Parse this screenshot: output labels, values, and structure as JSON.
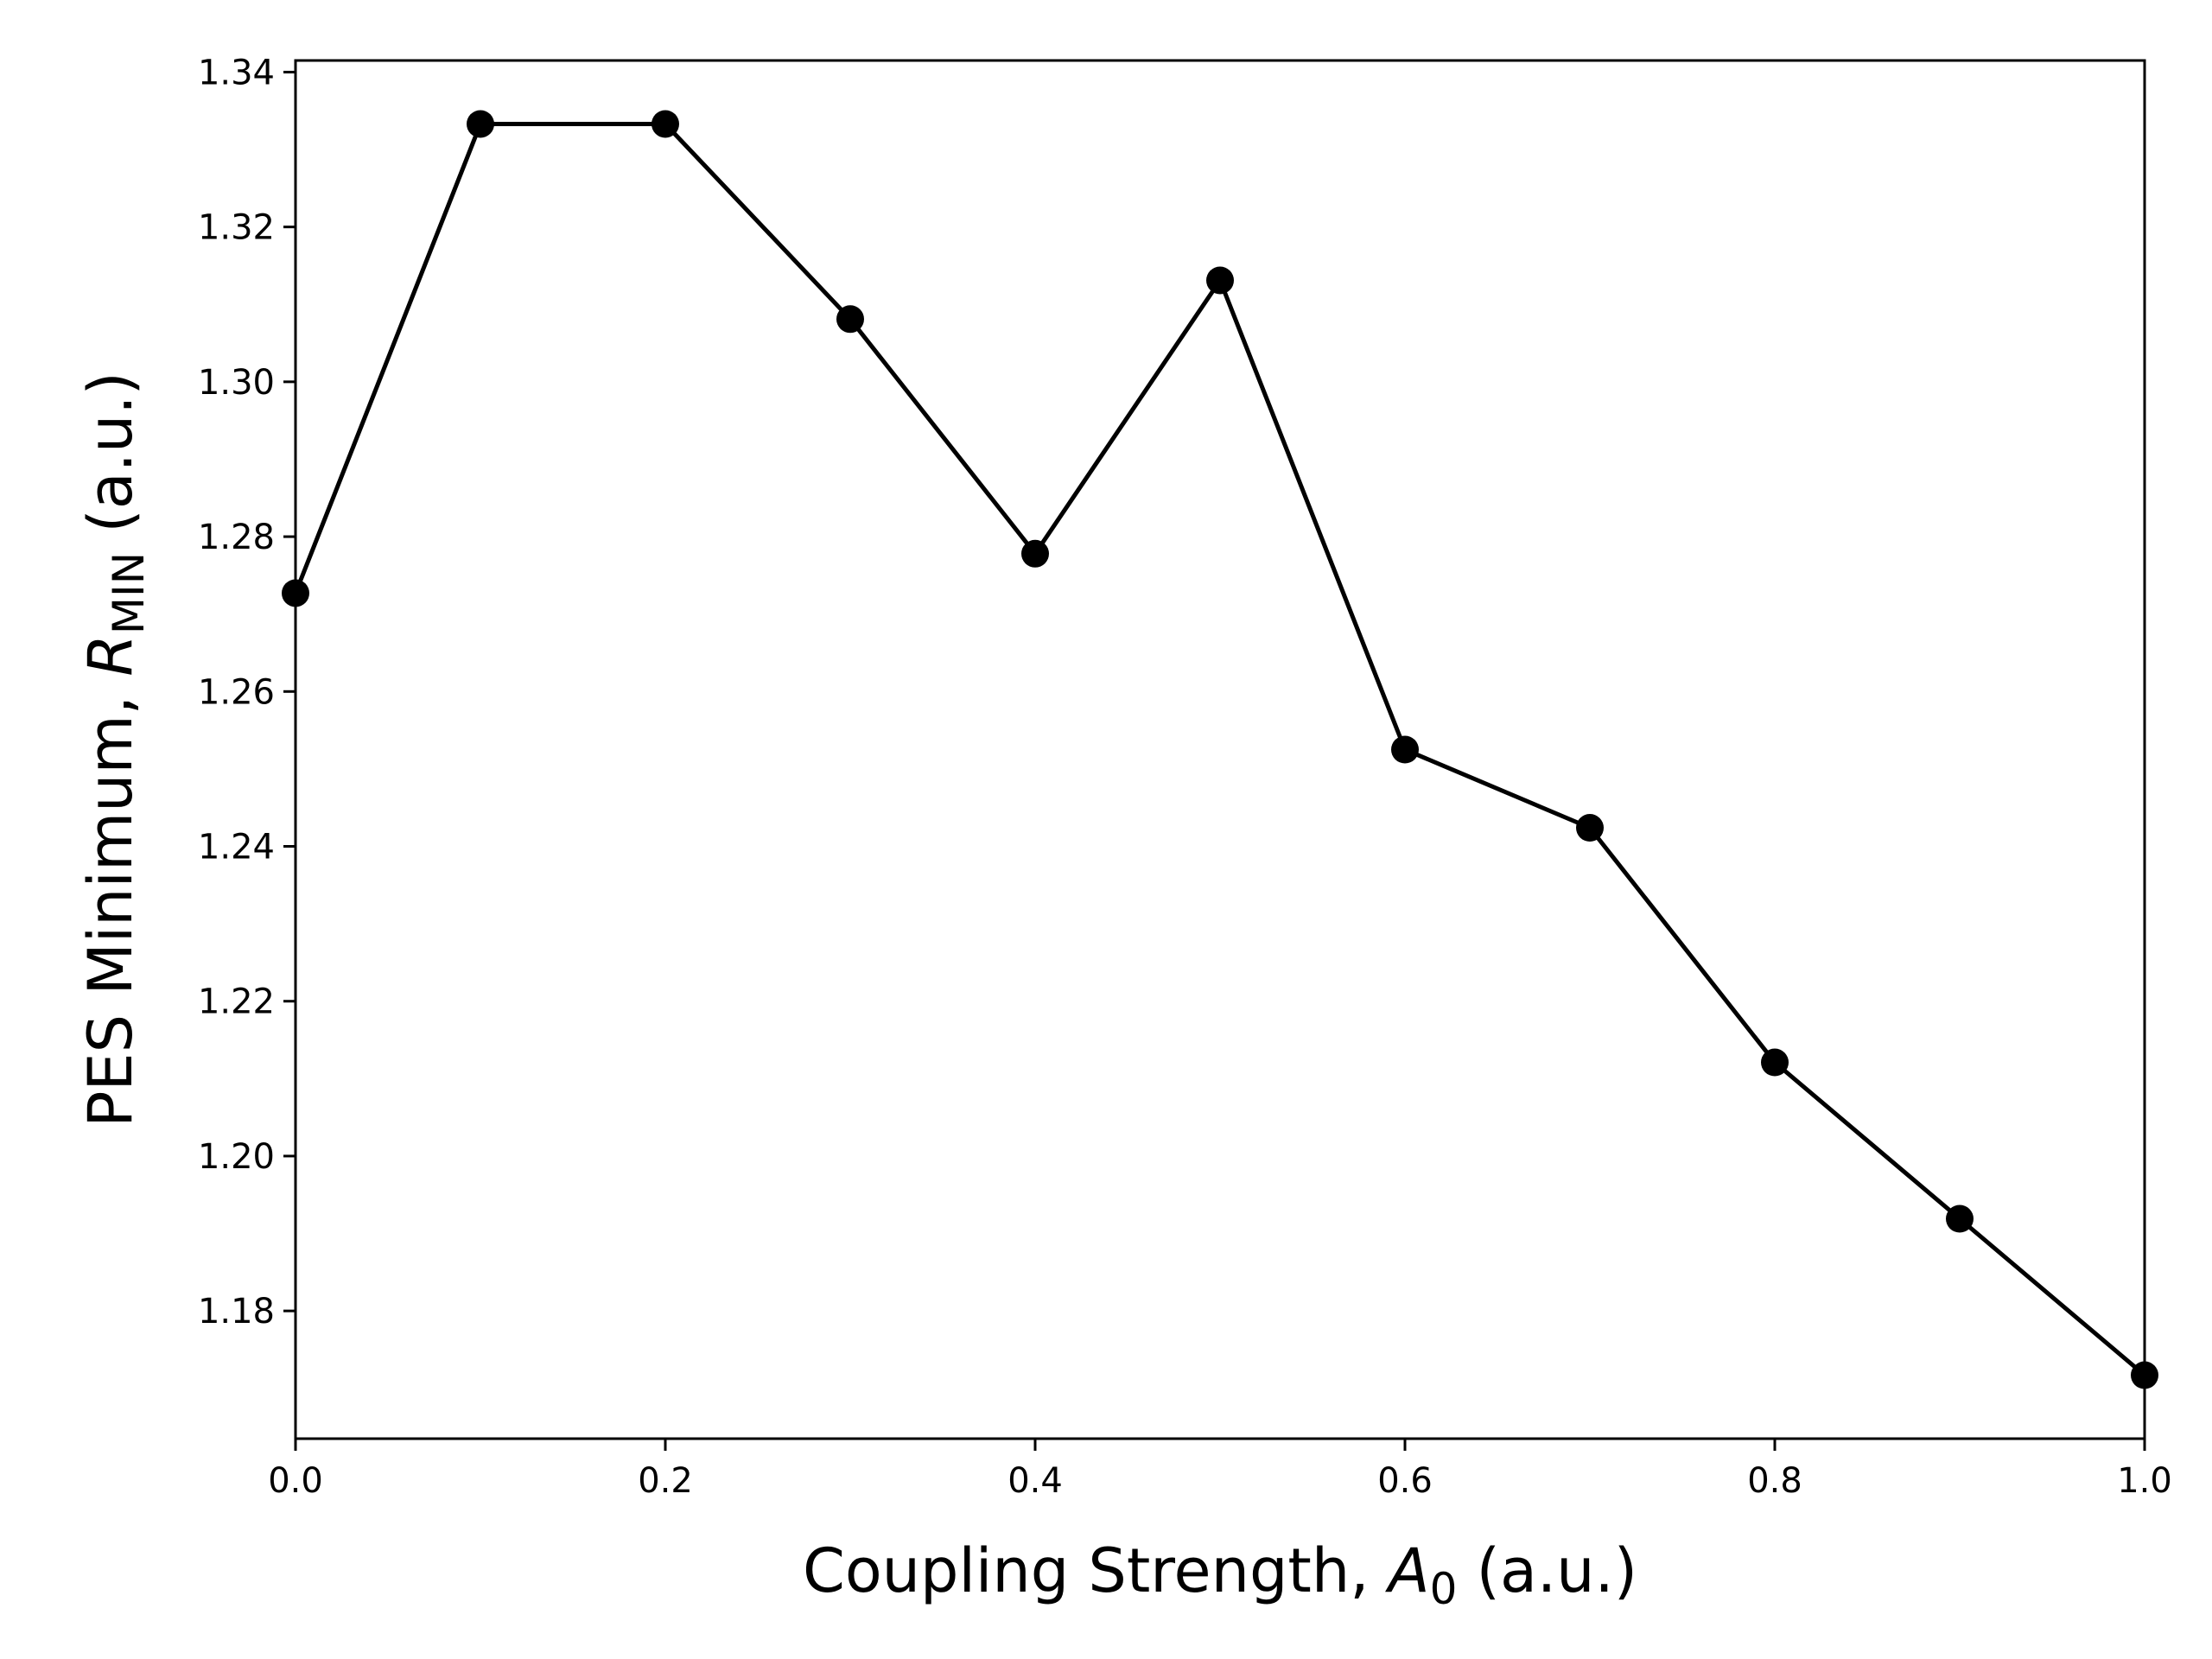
{
  "chart_data": {
    "type": "line",
    "title": "",
    "xlabel": {
      "prefix": "Coupling Strength, ",
      "symbol": "A",
      "subscript": "0",
      "suffix": " (a.u.)"
    },
    "ylabel": {
      "prefix": "PES Minimum, ",
      "symbol": "R",
      "subscript": "MIN",
      "suffix": " (a.u.)"
    },
    "xlim": [
      0.0,
      1.0
    ],
    "ylim": [
      1.1635,
      1.3415
    ],
    "x_ticks": [
      0.0,
      0.2,
      0.4,
      0.6,
      0.8,
      1.0
    ],
    "x_tick_labels": [
      "0.0",
      "0.2",
      "0.4",
      "0.6",
      "0.8",
      "1.0"
    ],
    "y_ticks": [
      1.18,
      1.2,
      1.22,
      1.24,
      1.26,
      1.28,
      1.3,
      1.32,
      1.34
    ],
    "y_tick_labels": [
      "1.18",
      "1.20",
      "1.22",
      "1.24",
      "1.26",
      "1.28",
      "1.30",
      "1.32",
      "1.34"
    ],
    "grid": false,
    "legend": "none",
    "series": [
      {
        "color": "#000000",
        "marker": "circle",
        "x": [
          0.0,
          0.1,
          0.2,
          0.3,
          0.4,
          0.5,
          0.6,
          0.7,
          0.8,
          0.9,
          1.0
        ],
        "y": [
          1.2727,
          1.3333,
          1.3333,
          1.3081,
          1.2778,
          1.3131,
          1.2525,
          1.2424,
          1.2121,
          1.1919,
          1.1717
        ]
      }
    ]
  }
}
